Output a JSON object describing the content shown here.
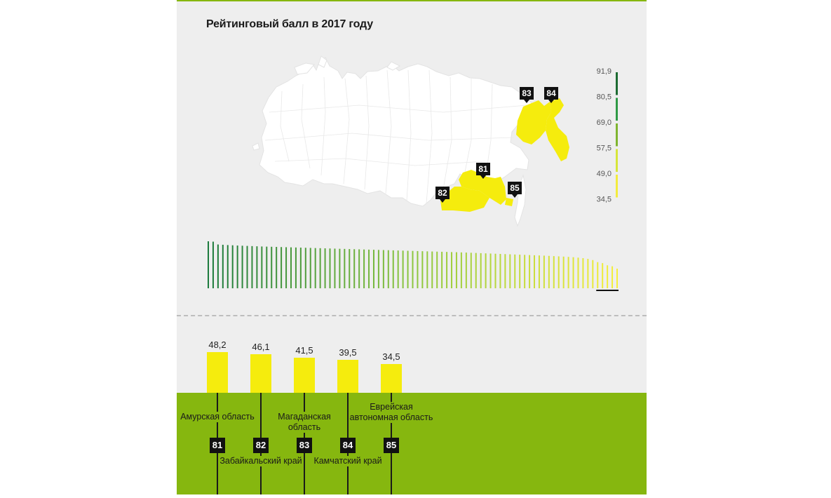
{
  "title": "Рейтинговый балл в 2017 году",
  "colors": {
    "panel": "#eeeeee",
    "highlight": "#f5ec0d",
    "green_band": "#86b70f",
    "scale_dark": "#1b7a3c",
    "scale_light": "#f6ef3a"
  },
  "legend": {
    "ticks": [
      "91,9",
      "80,5",
      "69,0",
      "57,5",
      "49,0",
      "34,5"
    ],
    "segment_colors": [
      "#1d6b32",
      "#2e9a45",
      "#7fb52f",
      "#d7e63a",
      "#f3ec3d"
    ]
  },
  "map": {
    "pins": [
      {
        "label": "83"
      },
      {
        "label": "84"
      },
      {
        "label": "81"
      },
      {
        "label": "82"
      },
      {
        "label": "85"
      }
    ]
  },
  "chart_data": [
    {
      "type": "bar",
      "title": "Рейтинговый балл в 2017 году",
      "note": "ranking of all regions, sorted descending",
      "ylim": [
        34.5,
        91.9
      ],
      "values": [
        91.9,
        91.1,
        85.2,
        84.6,
        84.0,
        83.5,
        83.0,
        82.6,
        82.2,
        81.8,
        81.4,
        81.0,
        80.7,
        80.4,
        80.1,
        79.8,
        79.5,
        79.2,
        78.9,
        78.6,
        78.3,
        78.0,
        77.7,
        77.4,
        77.1,
        76.8,
        76.5,
        76.2,
        75.9,
        75.6,
        75.3,
        75.0,
        74.7,
        74.4,
        74.1,
        73.8,
        73.5,
        73.2,
        72.9,
        72.6,
        72.3,
        72.0,
        71.7,
        71.4,
        71.1,
        70.8,
        70.5,
        70.2,
        69.9,
        69.6,
        69.3,
        69.0,
        68.6,
        68.2,
        67.8,
        67.4,
        67.0,
        66.6,
        66.2,
        65.8,
        65.4,
        65.0,
        64.6,
        64.2,
        63.8,
        63.4,
        63.0,
        62.6,
        62.2,
        61.8,
        61.3,
        60.8,
        60.3,
        59.8,
        59.2,
        58.5,
        57.6,
        56.5,
        55.0,
        52.5,
        48.2,
        46.1,
        41.5,
        39.5,
        34.5
      ]
    },
    {
      "type": "bar",
      "categories": [
        "Амурская область",
        "Забайкальский край",
        "Магаданская область",
        "Камчатский край",
        "Еврейская автономная область"
      ],
      "values": [
        48.2,
        46.1,
        41.5,
        39.5,
        34.5
      ],
      "ranks": [
        "81",
        "82",
        "83",
        "84",
        "85"
      ]
    }
  ],
  "bottom": {
    "bars": [
      {
        "value": "48,2",
        "name": "Амурская область",
        "rank": "81"
      },
      {
        "value": "46,1",
        "name": "Забайкальский край",
        "rank": "82"
      },
      {
        "value": "41,5",
        "name": "Магаданская область",
        "rank": "83"
      },
      {
        "value": "39,5",
        "name": "Камчатский край",
        "rank": "84"
      },
      {
        "value": "34,5",
        "name": "Еврейская автономная область",
        "rank": "85"
      }
    ]
  }
}
